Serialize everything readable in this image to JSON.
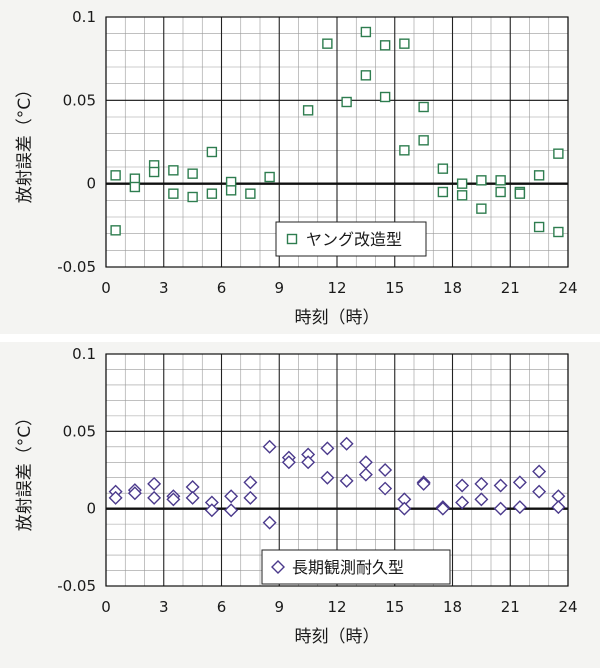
{
  "chart_data": [
    {
      "type": "scatter",
      "xlabel": "時刻（時）",
      "ylabel": "放射誤差（°C）",
      "xlim": [
        0,
        24
      ],
      "ylim": [
        -0.05,
        0.1
      ],
      "x_ticks": [
        "0",
        "3",
        "6",
        "9",
        "12",
        "15",
        "18",
        "21",
        "24"
      ],
      "y_ticks": [
        "-0.05",
        "0",
        "0.05",
        "0.1"
      ],
      "grid": true,
      "legend_position": "bottom-center",
      "marker": "square",
      "color": "#2e7d4f",
      "series": [
        {
          "name": "ヤング改造型",
          "points": [
            [
              0.5,
              0.005
            ],
            [
              0.5,
              -0.028
            ],
            [
              1.5,
              0.003
            ],
            [
              1.5,
              -0.002
            ],
            [
              2.5,
              0.011
            ],
            [
              2.5,
              0.007
            ],
            [
              3.5,
              0.008
            ],
            [
              3.5,
              -0.006
            ],
            [
              4.5,
              0.006
            ],
            [
              4.5,
              -0.008
            ],
            [
              5.5,
              0.019
            ],
            [
              5.5,
              -0.006
            ],
            [
              6.5,
              0.001
            ],
            [
              6.5,
              -0.004
            ],
            [
              7.5,
              -0.006
            ],
            [
              8.5,
              0.004
            ],
            [
              10.5,
              0.044
            ],
            [
              11.5,
              0.084
            ],
            [
              12.5,
              0.049
            ],
            [
              13.5,
              0.091
            ],
            [
              13.5,
              0.065
            ],
            [
              14.5,
              0.083
            ],
            [
              14.5,
              0.052
            ],
            [
              15.5,
              0.084
            ],
            [
              15.5,
              0.02
            ],
            [
              16.5,
              0.046
            ],
            [
              16.5,
              0.026
            ],
            [
              17.5,
              0.009
            ],
            [
              17.5,
              -0.005
            ],
            [
              18.5,
              0.0
            ],
            [
              18.5,
              -0.007
            ],
            [
              19.5,
              0.002
            ],
            [
              19.5,
              -0.015
            ],
            [
              20.5,
              0.002
            ],
            [
              20.5,
              -0.005
            ],
            [
              21.5,
              -0.005
            ],
            [
              21.5,
              -0.006
            ],
            [
              22.5,
              0.005
            ],
            [
              22.5,
              -0.026
            ],
            [
              23.5,
              0.018
            ],
            [
              23.5,
              -0.029
            ]
          ]
        }
      ]
    },
    {
      "type": "scatter",
      "xlabel": "時刻（時）",
      "ylabel": "放射誤差（°C）",
      "xlim": [
        0,
        24
      ],
      "ylim": [
        -0.05,
        0.1
      ],
      "x_ticks": [
        "0",
        "3",
        "6",
        "9",
        "12",
        "15",
        "18",
        "21",
        "24"
      ],
      "y_ticks": [
        "-0.05",
        "0",
        "0.05",
        "0.1"
      ],
      "grid": true,
      "legend_position": "bottom-center",
      "marker": "diamond",
      "color": "#4b3a8c",
      "series": [
        {
          "name": "長期観測耐久型",
          "points": [
            [
              0.5,
              0.011
            ],
            [
              0.5,
              0.007
            ],
            [
              1.5,
              0.012
            ],
            [
              1.5,
              0.01
            ],
            [
              2.5,
              0.016
            ],
            [
              2.5,
              0.007
            ],
            [
              3.5,
              0.008
            ],
            [
              3.5,
              0.006
            ],
            [
              4.5,
              0.014
            ],
            [
              4.5,
              0.007
            ],
            [
              5.5,
              0.004
            ],
            [
              5.5,
              -0.001
            ],
            [
              6.5,
              0.008
            ],
            [
              6.5,
              -0.001
            ],
            [
              7.5,
              0.017
            ],
            [
              7.5,
              0.007
            ],
            [
              8.5,
              0.04
            ],
            [
              8.5,
              -0.009
            ],
            [
              9.5,
              0.033
            ],
            [
              9.5,
              0.03
            ],
            [
              10.5,
              0.035
            ],
            [
              10.5,
              0.03
            ],
            [
              11.5,
              0.039
            ],
            [
              11.5,
              0.02
            ],
            [
              12.5,
              0.042
            ],
            [
              12.5,
              0.018
            ],
            [
              13.5,
              0.03
            ],
            [
              13.5,
              0.022
            ],
            [
              14.5,
              0.025
            ],
            [
              14.5,
              0.013
            ],
            [
              15.5,
              0.006
            ],
            [
              15.5,
              0.0
            ],
            [
              16.5,
              0.017
            ],
            [
              16.5,
              0.016
            ],
            [
              17.5,
              0.001
            ],
            [
              17.5,
              0.0
            ],
            [
              18.5,
              0.015
            ],
            [
              18.5,
              0.004
            ],
            [
              19.5,
              0.016
            ],
            [
              19.5,
              0.006
            ],
            [
              20.5,
              0.015
            ],
            [
              20.5,
              0.0
            ],
            [
              21.5,
              0.017
            ],
            [
              21.5,
              0.001
            ],
            [
              22.5,
              0.024
            ],
            [
              22.5,
              0.011
            ],
            [
              23.5,
              0.008
            ],
            [
              23.5,
              0.001
            ]
          ]
        }
      ]
    }
  ]
}
